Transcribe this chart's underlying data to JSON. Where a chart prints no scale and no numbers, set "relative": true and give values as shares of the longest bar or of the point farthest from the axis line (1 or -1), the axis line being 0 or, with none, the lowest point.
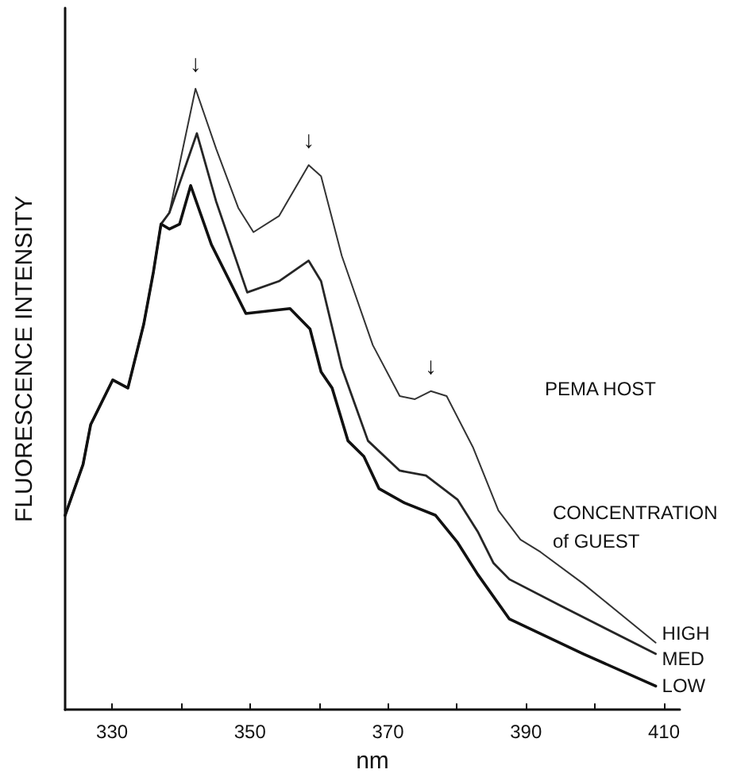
{
  "chart_data": {
    "type": "line",
    "relative": true,
    "xlabel": "nm",
    "ylabel": "FLUORESCENCE INTENSITY",
    "xlim": [
      323.2,
      412.3
    ],
    "xticks": [
      330,
      {
        "value": 340,
        "label": null
      },
      350,
      {
        "value": 360,
        "label": null
      },
      370,
      {
        "value": 380,
        "label": null
      },
      390,
      {
        "value": 400,
        "label": null
      },
      410
    ],
    "grid": false,
    "legend": false,
    "marker": "none",
    "line_style": "solid",
    "annotations": [
      {
        "text": "↓",
        "x": 342.1,
        "y": 1
      },
      {
        "text": "↓",
        "x": 358.5,
        "y": 0.877
      },
      {
        "text": "↓",
        "x": 376.2,
        "y": 0.513
      },
      "PEMA HOST",
      "CONCENTRATION of GUEST"
    ],
    "series": [
      {
        "name": "HIGH",
        "color": "#333333",
        "x": [
          323.2,
          325.8,
          326.9,
          330.1,
          332.3,
          334.6,
          336.0,
          337.1,
          338.3,
          342.1,
          345.1,
          348.3,
          350.5,
          354.2,
          358.5,
          360.3,
          363.3,
          367.8,
          371.7,
          373.9,
          376.2,
          378.5,
          382.3,
          386.0,
          389.2,
          392.1,
          398.3,
          408.8
        ],
        "values": [
          0.313,
          0.395,
          0.459,
          0.531,
          0.518,
          0.621,
          0.705,
          0.782,
          0.8,
          1,
          0.903,
          0.808,
          0.769,
          0.795,
          0.877,
          0.859,
          0.731,
          0.587,
          0.505,
          0.5,
          0.513,
          0.505,
          0.423,
          0.321,
          0.274,
          0.254,
          0.203,
          0.108
        ]
      },
      {
        "name": "MED",
        "color": "#262626",
        "x": [
          323.2,
          325.8,
          326.9,
          330.1,
          332.3,
          334.6,
          336.0,
          337.1,
          338.3,
          342.3,
          345.1,
          349.6,
          354.2,
          358.5,
          360.3,
          363.3,
          367.1,
          371.7,
          375.5,
          380.1,
          383.0,
          385.3,
          387.6,
          395.1,
          408.8
        ],
        "values": [
          0.313,
          0.395,
          0.459,
          0.531,
          0.518,
          0.621,
          0.705,
          0.782,
          0.8,
          0.928,
          0.818,
          0.672,
          0.69,
          0.723,
          0.69,
          0.551,
          0.433,
          0.385,
          0.377,
          0.338,
          0.287,
          0.236,
          0.21,
          0.167,
          0.09
        ]
      },
      {
        "name": "LOW",
        "color": "#111111",
        "x": [
          323.2,
          325.8,
          326.9,
          330.1,
          332.3,
          334.6,
          336.0,
          337.1,
          338.3,
          339.8,
          341.4,
          344.4,
          349.4,
          355.8,
          358.7,
          360.3,
          361.9,
          364.2,
          366.5,
          368.7,
          372.4,
          376.9,
          380.1,
          383.0,
          387.6,
          398.3,
          408.8
        ],
        "values": [
          0.313,
          0.395,
          0.459,
          0.531,
          0.518,
          0.621,
          0.705,
          0.782,
          0.774,
          0.782,
          0.844,
          0.749,
          0.638,
          0.646,
          0.613,
          0.544,
          0.518,
          0.433,
          0.408,
          0.356,
          0.333,
          0.313,
          0.269,
          0.218,
          0.146,
          0.09,
          0.038
        ]
      }
    ]
  }
}
